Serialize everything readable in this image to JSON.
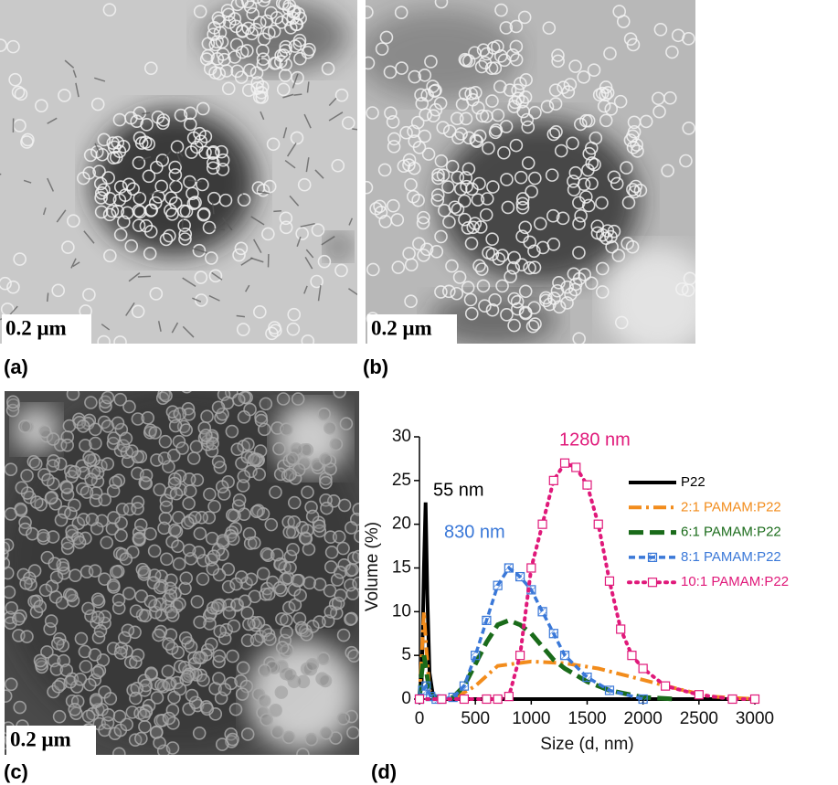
{
  "panels": [
    {
      "label": "(a)",
      "scale_bar": "0.2 μm"
    },
    {
      "label": "(b)",
      "scale_bar": "0.2 μm"
    },
    {
      "label": "(c)",
      "scale_bar": "0.2 μm"
    },
    {
      "label": "(d)"
    }
  ],
  "chart_data": {
    "type": "line",
    "x_label": "Size (d, nm)",
    "y_label": "Volume (%)",
    "xlim": [
      0,
      3000
    ],
    "xticks": [
      0,
      500,
      1000,
      1500,
      2000,
      2500,
      3000
    ],
    "ylim": [
      0,
      30
    ],
    "yticks": [
      0,
      5,
      10,
      15,
      20,
      25,
      30
    ],
    "legend": "upper right",
    "annotations": [
      {
        "text": "55 nm",
        "color": "#000000"
      },
      {
        "text": "830 nm",
        "color": "#3a78d8"
      },
      {
        "text": "1280 nm",
        "color": "#e0197a"
      }
    ],
    "series": [
      {
        "name": "P22",
        "color": "#000000",
        "linestyle": "solid",
        "marker": "none",
        "x": [
          0,
          20,
          40,
          55,
          70,
          90,
          120,
          200,
          500,
          1000,
          2000,
          3000
        ],
        "values": [
          0,
          2,
          15,
          22.5,
          12,
          3,
          0.5,
          0,
          0,
          0,
          0,
          0
        ]
      },
      {
        "name": "2:1 PAMAM:P22",
        "color": "#f28c1c",
        "linestyle": "dashdot",
        "marker": "none",
        "x": [
          0,
          20,
          40,
          60,
          90,
          150,
          300,
          500,
          700,
          1000,
          1300,
          1600,
          2000,
          2300,
          2600,
          3000
        ],
        "values": [
          0,
          5,
          10,
          6,
          1,
          0,
          0,
          1.5,
          3.8,
          4.3,
          4.1,
          3.5,
          2.2,
          1.2,
          0.3,
          0
        ]
      },
      {
        "name": "6:1 PAMAM:P22",
        "color": "#1a6b1a",
        "linestyle": "dashed",
        "marker": "none",
        "x": [
          0,
          20,
          40,
          70,
          100,
          200,
          300,
          400,
          500,
          600,
          700,
          800,
          900,
          1000,
          1100,
          1200,
          1300,
          1500,
          1700,
          2000,
          2300
        ],
        "values": [
          0,
          3,
          5,
          2.5,
          0.5,
          0,
          0.2,
          1.5,
          4,
          6.5,
          8.5,
          9,
          8.5,
          7.5,
          6,
          4.5,
          3.5,
          2,
          1,
          0.2,
          0
        ]
      },
      {
        "name": "8:1 PAMAM:P22",
        "color": "#3a78d8",
        "linestyle": "short-dashed",
        "marker": "hatched-square",
        "x": [
          0,
          30,
          60,
          100,
          150,
          200,
          300,
          400,
          500,
          600,
          700,
          800,
          900,
          1000,
          1100,
          1200,
          1300,
          1500,
          1700,
          2000
        ],
        "values": [
          0,
          1,
          1.5,
          0.3,
          0,
          0,
          0.2,
          1.5,
          5,
          9,
          13,
          15,
          14,
          12.5,
          10,
          7.5,
          5,
          2.5,
          1,
          0
        ]
      },
      {
        "name": "10:1 PAMAM:P22",
        "color": "#e0197a",
        "linestyle": "dotted",
        "marker": "open-square",
        "x": [
          0,
          200,
          400,
          600,
          700,
          800,
          900,
          1000,
          1100,
          1200,
          1300,
          1400,
          1500,
          1600,
          1700,
          1800,
          1900,
          2000,
          2200,
          2500,
          2800,
          3000
        ],
        "values": [
          0,
          0,
          0,
          0,
          0,
          0.3,
          5,
          15,
          20,
          25,
          27,
          26.5,
          24.5,
          20,
          13.5,
          8,
          5,
          3.5,
          1.5,
          0.5,
          0,
          0
        ]
      }
    ]
  }
}
